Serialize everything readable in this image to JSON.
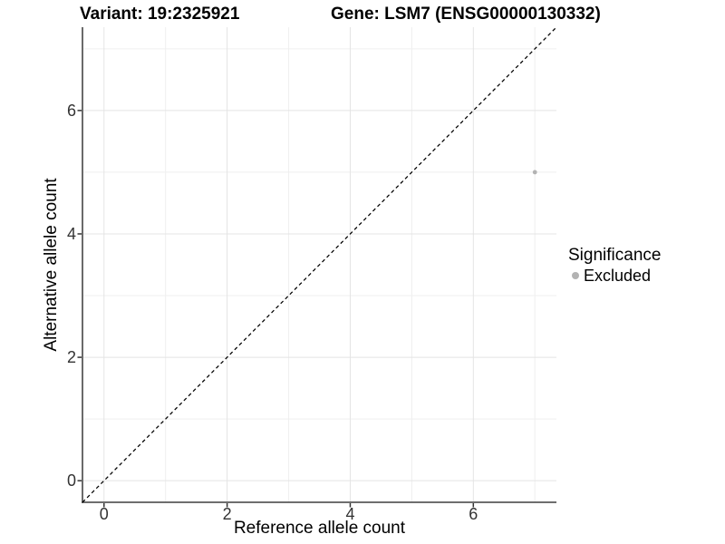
{
  "header": {
    "variant_title": "Variant: 19:2325921",
    "gene_title": "Gene: LSM7 (ENSG00000130332)"
  },
  "chart_data": {
    "type": "scatter",
    "title_left": "Variant: 19:2325921",
    "title_right": "Gene: LSM7 (ENSG00000130332)",
    "xlabel": "Reference allele count",
    "ylabel": "Alternative allele count",
    "xlim": [
      -0.35,
      7.35
    ],
    "ylim": [
      -0.35,
      7.35
    ],
    "x_major_ticks": [
      0,
      2,
      4,
      6
    ],
    "x_minor_ticks": [
      1,
      3,
      5,
      7
    ],
    "y_major_ticks": [
      0,
      2,
      4,
      6
    ],
    "y_minor_ticks": [
      1,
      3,
      5,
      7
    ],
    "grid": true,
    "reference_line": {
      "type": "identity",
      "intercept": 0,
      "slope": 1,
      "style": "dashed",
      "color": "#000000"
    },
    "series": [
      {
        "name": "Excluded",
        "color": "#b3b3b3",
        "points": [
          {
            "x": 7,
            "y": 5
          }
        ]
      }
    ],
    "legend": {
      "title": "Significance",
      "position": "right",
      "items": [
        {
          "label": "Excluded",
          "color": "#b3b3b3",
          "icon": "dot-icon"
        }
      ]
    },
    "colors": {
      "grid_major": "#e4e4e4",
      "grid_minor": "#efefef",
      "axis_line": "#5a5a5a",
      "tick_mark": "#333333",
      "tick_label": "#333333",
      "background": "#ffffff"
    }
  }
}
